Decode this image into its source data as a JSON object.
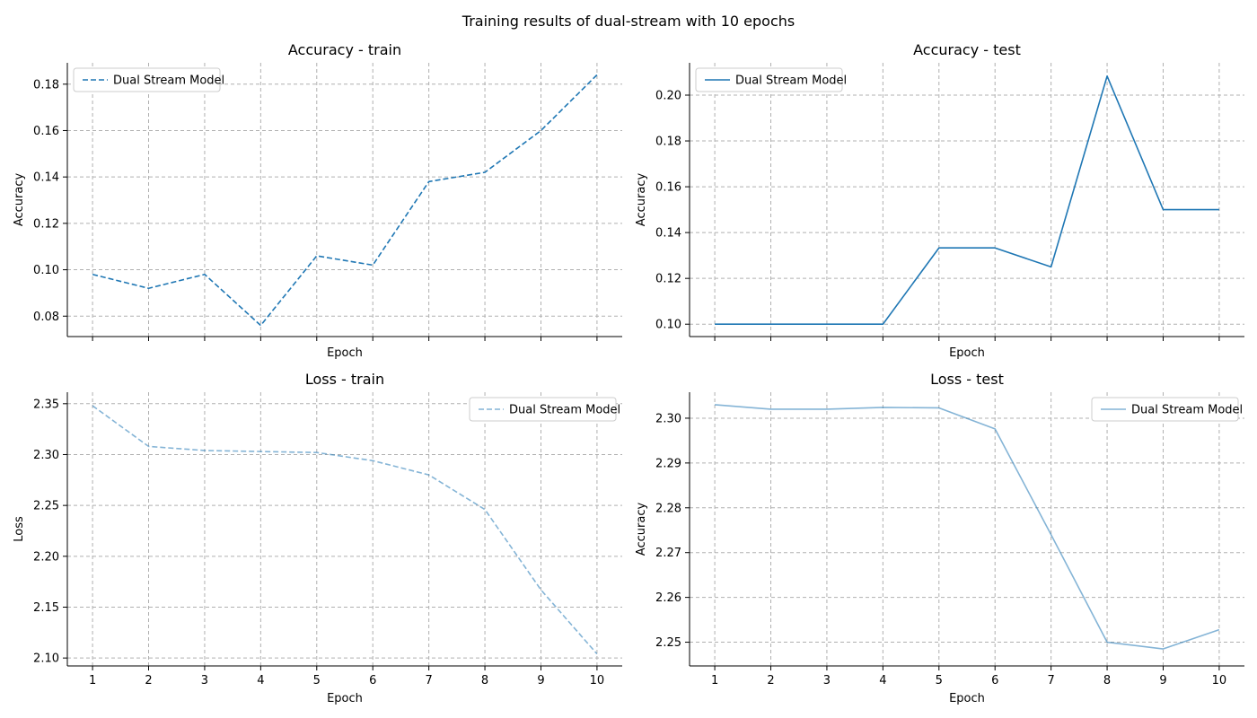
{
  "figure": {
    "title": "Training results of dual-stream with 10 epochs",
    "series_color": "#1f77b4"
  },
  "chart_data": [
    {
      "type": "line",
      "title": "Accuracy - train",
      "xlabel": "Epoch",
      "ylabel": "Accuracy",
      "x": [
        1,
        2,
        3,
        4,
        5,
        6,
        7,
        8,
        9,
        10
      ],
      "xlim": [
        0.55,
        10.45
      ],
      "ylim": [
        0.0712,
        0.1892
      ],
      "yticks": [
        0.08,
        0.1,
        0.12,
        0.14,
        0.16,
        0.18
      ],
      "ytick_decimals": 2,
      "show_xtick_labels": false,
      "grid": true,
      "legend_position": "upper-left",
      "series": [
        {
          "name": "Dual Stream Model",
          "values": [
            0.098,
            0.092,
            0.098,
            0.076,
            0.106,
            0.102,
            0.138,
            0.142,
            0.16,
            0.184
          ],
          "linestyle": "dashed",
          "opacity": 1.0
        }
      ]
    },
    {
      "type": "line",
      "title": "Accuracy - test",
      "xlabel": "Epoch",
      "ylabel": "Accuracy",
      "x": [
        1,
        2,
        3,
        4,
        5,
        6,
        7,
        8,
        9,
        10
      ],
      "xlim": [
        0.55,
        10.45
      ],
      "ylim": [
        0.0946,
        0.2141
      ],
      "yticks": [
        0.1,
        0.12,
        0.14,
        0.16,
        0.18,
        0.2
      ],
      "ytick_decimals": 2,
      "show_xtick_labels": false,
      "grid": true,
      "legend_position": "upper-left",
      "series": [
        {
          "name": "Dual Stream Model",
          "values": [
            0.1,
            0.1,
            0.1,
            0.1,
            0.1333,
            0.1333,
            0.125,
            0.2083,
            0.15,
            0.15
          ],
          "linestyle": "solid",
          "opacity": 1.0
        }
      ]
    },
    {
      "type": "line",
      "title": "Loss - train",
      "xlabel": "Epoch",
      "ylabel": "Loss",
      "x": [
        1,
        2,
        3,
        4,
        5,
        6,
        7,
        8,
        9,
        10
      ],
      "xlim": [
        0.55,
        10.45
      ],
      "ylim": [
        2.0922,
        2.3613
      ],
      "yticks": [
        2.1,
        2.15,
        2.2,
        2.25,
        2.3,
        2.35
      ],
      "ytick_decimals": 2,
      "show_xtick_labels": true,
      "grid": true,
      "legend_position": "upper-right",
      "series": [
        {
          "name": "Dual Stream Model",
          "values": [
            2.348,
            2.308,
            2.304,
            2.303,
            2.302,
            2.294,
            2.28,
            2.246,
            2.167,
            2.104
          ],
          "linestyle": "dashed",
          "opacity": 0.55
        }
      ]
    },
    {
      "type": "line",
      "title": "Loss - test",
      "xlabel": "Epoch",
      "ylabel": "Accuracy",
      "x": [
        1,
        2,
        3,
        4,
        5,
        6,
        7,
        8,
        9,
        10
      ],
      "xlim": [
        0.55,
        10.45
      ],
      "ylim": [
        2.2447,
        2.3058
      ],
      "yticks": [
        2.25,
        2.26,
        2.27,
        2.28,
        2.29,
        2.3
      ],
      "ytick_decimals": 2,
      "show_xtick_labels": true,
      "grid": true,
      "legend_position": "upper-right",
      "series": [
        {
          "name": "Dual Stream Model",
          "values": [
            2.303,
            2.302,
            2.302,
            2.3024,
            2.3023,
            2.2976,
            2.274,
            2.25,
            2.2485,
            2.2528
          ],
          "linestyle": "solid",
          "opacity": 0.55
        }
      ]
    }
  ]
}
